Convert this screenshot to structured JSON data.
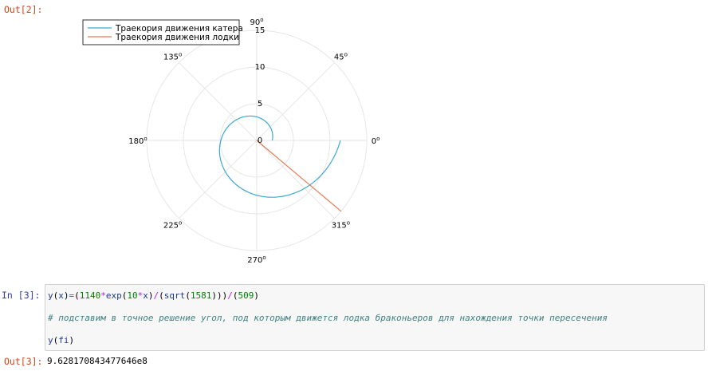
{
  "cells": {
    "out2_prompt": "Out[2]:",
    "in3_prompt": "In [3]:",
    "out3_prompt": "Out[3]:",
    "out3_value": "9.628170843477646e8"
  },
  "code": {
    "line1": {
      "name_y": "y",
      "paren_open": "(",
      "name_x": "x",
      "paren_close_eq": ")",
      "op_eq": "=",
      "paren2": "(",
      "num_1140": "1140",
      "op_mul1": "*",
      "name_exp": "exp",
      "paren3": "(",
      "num_10": "10",
      "op_mul2": "*",
      "name_x2": "x",
      "paren4": ")",
      "op_div1": "/",
      "paren5": "(",
      "name_sqrt": "sqrt",
      "paren6": "(",
      "num_1581": "1581",
      "paren7": ")))",
      "op_div2": "/",
      "paren8": "(",
      "num_509": "509",
      "paren9": ")"
    },
    "comment": "# подставим в точное решение угол, под которым движется лодка браконьеров для нахождения точки пересечения",
    "line3": {
      "name_y": "y",
      "paren_open": "(",
      "name_fi": "fi",
      "paren_close": ")"
    }
  },
  "chart_data": {
    "type": "line",
    "projection": "polar",
    "r_ticks": [
      "0",
      "5",
      "10",
      "15"
    ],
    "r_range": [
      0,
      15
    ],
    "angle_ticks": [
      {
        "deg": 0,
        "label": "0",
        "sup": "o"
      },
      {
        "deg": 45,
        "label": "45",
        "sup": "o"
      },
      {
        "deg": 90,
        "label": "90",
        "sup": "o"
      },
      {
        "deg": 135,
        "label": "135",
        "sup": "o"
      },
      {
        "deg": 180,
        "label": "180",
        "sup": "o"
      },
      {
        "deg": 225,
        "label": "225",
        "sup": "o"
      },
      {
        "deg": 270,
        "label": "270",
        "sup": "o"
      },
      {
        "deg": 315,
        "label": "315",
        "sup": "o"
      }
    ],
    "grid": true,
    "legend_position": "top-left",
    "series": [
      {
        "name": "Траекория движения катера",
        "color": "#3ba7d8",
        "kind": "spiral",
        "theta_start_deg": 0,
        "theta_end_deg": 360,
        "r_start": 2.1,
        "r_end": 11.4
      },
      {
        "name": "Траекория движения лодки",
        "color": "#e07b54",
        "kind": "ray",
        "theta_deg": -40,
        "r_start": 0,
        "r_end": 15
      }
    ]
  }
}
